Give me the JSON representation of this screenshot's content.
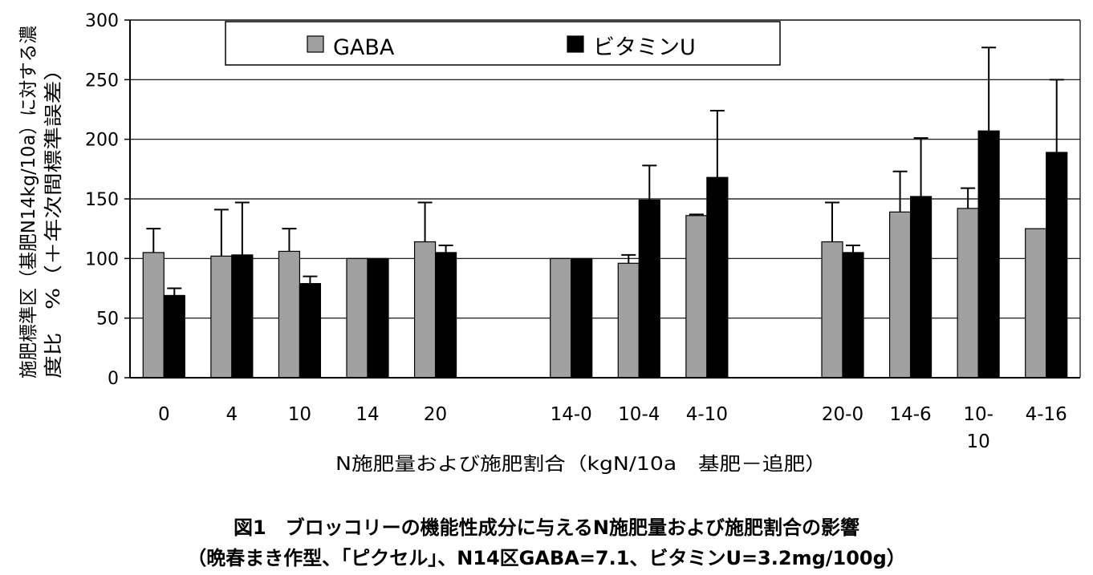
{
  "chart_data": {
    "type": "bar",
    "categories": [
      "0",
      "4",
      "10",
      "14",
      "20",
      "",
      "14-0",
      "10-4",
      "4-10",
      "",
      "20-0",
      "14-6",
      "10-\n10",
      "4-16"
    ],
    "series": [
      {
        "name": "GABA",
        "color": "#a0a0a0",
        "values": [
          105,
          102,
          106,
          100,
          114,
          null,
          100,
          96,
          136,
          null,
          114,
          139,
          142,
          125
        ],
        "errors": [
          20,
          39,
          19,
          null,
          33,
          null,
          null,
          7,
          1,
          null,
          33,
          34,
          17,
          null
        ]
      },
      {
        "name": "ビタミンU",
        "color": "#000000",
        "values": [
          69,
          103,
          79,
          100,
          105,
          null,
          100,
          149,
          168,
          null,
          105,
          152,
          207,
          189
        ],
        "errors": [
          6,
          44,
          6,
          null,
          6,
          null,
          null,
          29,
          56,
          null,
          6,
          49,
          70,
          61
        ]
      }
    ],
    "ylim": [
      0,
      300
    ],
    "yticks": [
      0,
      50,
      100,
      150,
      200,
      250,
      300
    ],
    "ylabel_line1": "施肥標準区（基肥N14kg/10a）に対する濃",
    "ylabel_line2": "度比　%（＋年次間標準誤差）",
    "xlabel": "N施肥量および施肥割合（kgN/10a　基肥－追肥）",
    "grid": true,
    "legend_position": "top"
  },
  "caption": {
    "line1": "図1　ブロッコリーの機能性成分に与えるN施肥量および施肥割合の影響",
    "line2": "（晩春まき作型、「ピクセル」、N14区GABA=7.1、ビタミンU=3.2mg/100g）"
  }
}
